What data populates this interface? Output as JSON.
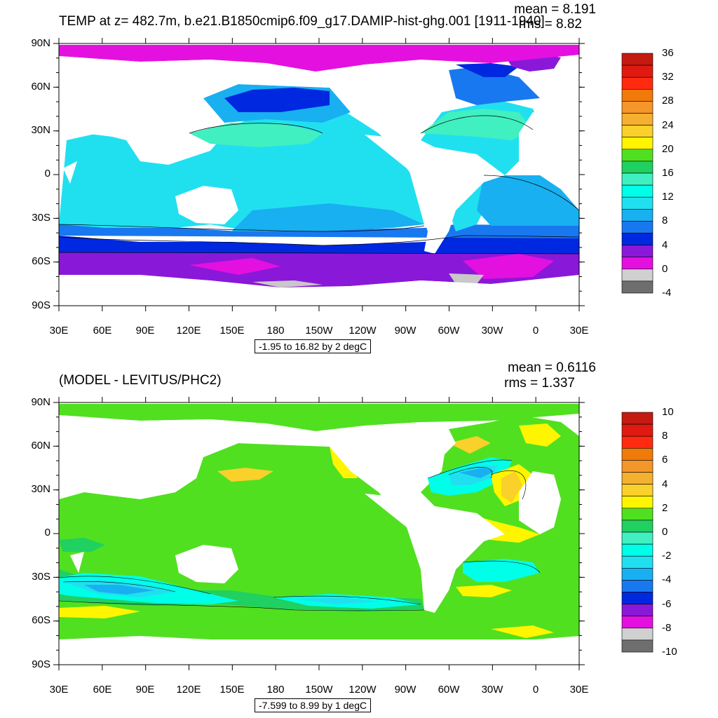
{
  "top_panel": {
    "title": "TEMP at z= 482.7m, b.e21.B1850cmip6.f09_g17.DAMIP-hist-ghg.001 [1911-1940]",
    "mean_text": "mean = 8.191",
    "rms_text": "rms = 8.82",
    "range_text": "-1.95 to 16.82 by 2 degC",
    "lat_labels": [
      "90N",
      "60N",
      "30N",
      "0",
      "30S",
      "60S",
      "90S"
    ],
    "lon_labels": [
      "30E",
      "60E",
      "90E",
      "120E",
      "150E",
      "180",
      "150W",
      "120W",
      "90W",
      "60W",
      "30W",
      "0",
      "30E"
    ],
    "colorbar": {
      "labels": [
        "36",
        "32",
        "28",
        "24",
        "20",
        "16",
        "12",
        "8",
        "4",
        "0",
        "-4"
      ],
      "colors": [
        "#c41a10",
        "#e01a10",
        "#ff2a10",
        "#f07a0a",
        "#f5962a",
        "#f5b030",
        "#fad02a",
        "#fff500",
        "#50e020",
        "#20d060",
        "#40f0c0",
        "#00ffe8",
        "#20e0f0",
        "#18b0f0",
        "#1878f0",
        "#0028e0",
        "#8a18d8",
        "#e410e0",
        "#d0d0d0",
        "#6e6e6e"
      ]
    }
  },
  "bottom_panel": {
    "title": "(MODEL - LEVITUS/PHC2)",
    "mean_text": "mean = 0.6116",
    "rms_text": "rms = 1.337",
    "range_text": "-7.599 to 8.99 by 1 degC",
    "lat_labels": [
      "90N",
      "60N",
      "30N",
      "0",
      "30S",
      "60S",
      "90S"
    ],
    "lon_labels": [
      "30E",
      "60E",
      "90E",
      "120E",
      "150E",
      "180",
      "150W",
      "120W",
      "90W",
      "60W",
      "30W",
      "0",
      "30E"
    ],
    "colorbar": {
      "labels": [
        "10",
        "8",
        "6",
        "4",
        "2",
        "0",
        "-2",
        "-4",
        "-6",
        "-8",
        "-10"
      ],
      "colors": [
        "#c41a10",
        "#e01a10",
        "#ff2a10",
        "#f07a0a",
        "#f5962a",
        "#f5b030",
        "#fad02a",
        "#fff500",
        "#50e020",
        "#20d060",
        "#40f0c0",
        "#00ffe8",
        "#20e0f0",
        "#18b0f0",
        "#1878f0",
        "#0028e0",
        "#8a18d8",
        "#e410e0",
        "#d0d0d0",
        "#6e6e6e"
      ]
    }
  },
  "colors": {
    "ocean_mid": "#20e0f0",
    "ocean_warm": "#40f0c0",
    "ocean_cool": "#18b0f0",
    "deep_blue": "#1878f0",
    "dark_blue": "#0028e0",
    "purple": "#8a18d8",
    "magenta": "#e410e0",
    "light_gray": "#c8c8c8",
    "land": "#ffffff",
    "anom_green": "#50e020",
    "anom_green2": "#20d060",
    "anom_yellow": "#fff500",
    "anom_gold": "#fad02a",
    "anom_cyan": "#00ffe8",
    "anom_teal": "#40f0c0",
    "anom_sky": "#20e0f0",
    "anom_blue": "#18b0f0"
  }
}
